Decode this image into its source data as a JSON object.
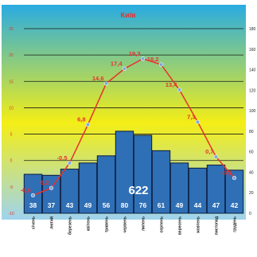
{
  "chart_data": {
    "type": "bar",
    "title": "Київ",
    "categories": [
      "січень",
      "лютий",
      "березень",
      "квітень",
      "травень",
      "червень",
      "липень",
      "серпень",
      "вересень",
      "жовтень",
      "листопад",
      "грудень"
    ],
    "x_tick_labels": [
      "січень",
      "лютий",
      "березень",
      "квітень",
      "травень",
      "червень",
      "липень",
      "серпень",
      "вересень",
      "жовтень",
      "листопад",
      "грудень"
    ],
    "series": [
      {
        "type": "bar",
        "axis": "right",
        "values": [
          38,
          37,
          43,
          49,
          56,
          80,
          76,
          61,
          49,
          44,
          47,
          42
        ]
      },
      {
        "type": "line",
        "axis": "left",
        "values": [
          -6.6,
          -5.2,
          -0.5,
          6.8,
          14.6,
          17.4,
          19.3,
          18.2,
          13.4,
          7.3,
          0.7,
          -3.3
        ],
        "labels": [
          "-6,6",
          "-5,2",
          "-0,5",
          "6,8",
          "14,6",
          "17,4",
          "19,3",
          "18,2",
          "13,4",
          "7,3",
          "0,7",
          "-3,3"
        ]
      }
    ],
    "total_label": "622",
    "left_axis": {
      "ylim": [
        -10,
        25
      ],
      "ticks": [
        "25",
        "20",
        "15",
        "10",
        "5",
        "0",
        "-5",
        "-10"
      ],
      "tick_values": [
        25,
        20,
        15,
        10,
        5,
        0,
        -5,
        -10
      ]
    },
    "right_axis": {
      "ylim": [
        0,
        180
      ],
      "ticks": [
        "180",
        "160",
        "140",
        "120",
        "100",
        "80",
        "60",
        "40",
        "20",
        "0"
      ],
      "tick_values": [
        180,
        160,
        140,
        120,
        100,
        80,
        60,
        40,
        20,
        0
      ]
    },
    "grid": true,
    "colors": {
      "bar": "#2f6fb5",
      "bar_stroke": "#0d1b3d",
      "line": "#e8312f",
      "marker": "#7aa7d8",
      "title": "#e8312f",
      "left_ticks": "#e8312f",
      "right_ticks": "#1a1a1a",
      "bg_top": "#29abe2",
      "bg_mid": "#f4ee16",
      "bg_bottom": "#9fd4ee"
    }
  }
}
